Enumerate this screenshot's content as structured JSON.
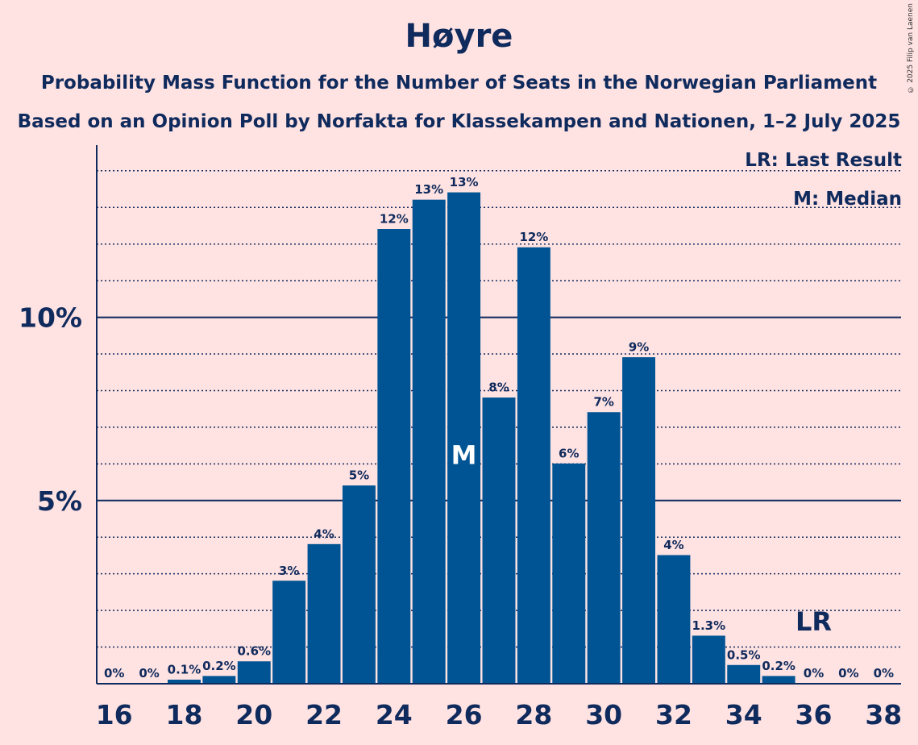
{
  "title": "Høyre",
  "subtitle1": "Probability Mass Function for the Number of Seats in the Norwegian Parliament",
  "subtitle2": "Based on an Opinion Poll by Norfakta for Klassekampen and Nationen, 1–2 July 2025",
  "copyright": "© 2025 Filip van Laenen",
  "legend": {
    "last_result": "LR: Last Result",
    "median": "M: Median"
  },
  "colors": {
    "background": "#ffe2e2",
    "bar": "#005494",
    "text": "#0f2a5c"
  },
  "chart_data": {
    "type": "bar",
    "categories": [
      16,
      17,
      18,
      19,
      20,
      21,
      22,
      23,
      24,
      25,
      26,
      27,
      28,
      29,
      30,
      31,
      32,
      33,
      34,
      35,
      36,
      37,
      38
    ],
    "values": [
      0,
      0,
      0.1,
      0.2,
      0.6,
      2.8,
      3.8,
      5.4,
      12.4,
      13.2,
      13.4,
      7.8,
      11.9,
      6.0,
      7.4,
      8.9,
      3.5,
      1.3,
      0.5,
      0.2,
      0,
      0,
      0
    ],
    "labels": [
      "0%",
      "0%",
      "0.1%",
      "0.2%",
      "0.6%",
      "3%",
      "4%",
      "5%",
      "12%",
      "13%",
      "13%",
      "8%",
      "12%",
      "6%",
      "7%",
      "9%",
      "4%",
      "1.3%",
      "0.5%",
      "0.2%",
      "0%",
      "0%",
      "0%"
    ],
    "x_tick_labels": [
      "16",
      "18",
      "20",
      "22",
      "24",
      "26",
      "28",
      "30",
      "32",
      "34",
      "36",
      "38"
    ],
    "y_tick_labels": [
      {
        "value": 5,
        "label": "5%"
      },
      {
        "value": 10,
        "label": "10%"
      }
    ],
    "ylim": [
      0,
      14.7
    ],
    "median_seat": 26,
    "median_label": "M",
    "last_result_seat": 36,
    "last_result_label": "LR",
    "grid": true
  }
}
